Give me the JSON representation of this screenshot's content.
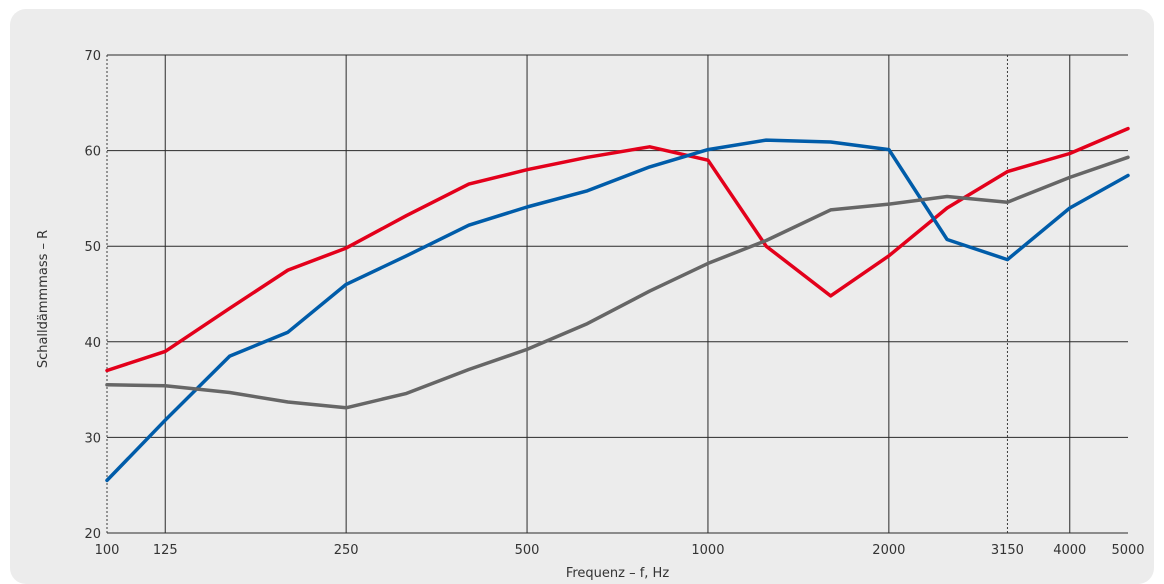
{
  "chart_data": {
    "type": "line",
    "xlabel": "Frequenz – f, Hz",
    "ylabel": "Schalldämmmass – R",
    "xscale": "log",
    "ylim": [
      20,
      70
    ],
    "xlim": [
      100,
      5000
    ],
    "yticks": [
      20,
      30,
      40,
      50,
      60,
      70
    ],
    "xticks": [
      100,
      125,
      250,
      500,
      1000,
      2000,
      3150,
      4000,
      5000
    ],
    "grid": true,
    "legend": "none",
    "x": [
      100,
      125,
      160,
      200,
      250,
      315,
      400,
      500,
      630,
      800,
      1000,
      1250,
      1600,
      2000,
      2500,
      3150,
      4000,
      5000
    ],
    "series": [
      {
        "color": "#e3001b",
        "values": [
          37.0,
          39.0,
          43.5,
          47.5,
          49.8,
          53.2,
          56.5,
          58.0,
          59.3,
          60.4,
          59.0,
          50.0,
          44.8,
          49.0,
          54.0,
          57.8,
          59.7,
          62.3
        ]
      },
      {
        "color": "#005ca9",
        "values": [
          25.5,
          31.8,
          38.5,
          41.0,
          46.0,
          49.0,
          52.2,
          54.1,
          55.8,
          58.3,
          60.1,
          61.1,
          60.9,
          60.1,
          50.7,
          48.6,
          54.0,
          57.4
        ]
      },
      {
        "color": "#666666",
        "values": [
          35.5,
          35.4,
          34.7,
          33.7,
          33.1,
          34.6,
          37.1,
          39.2,
          41.9,
          45.3,
          48.2,
          50.6,
          53.8,
          54.4,
          55.2,
          54.6,
          57.2,
          59.3
        ]
      }
    ]
  }
}
